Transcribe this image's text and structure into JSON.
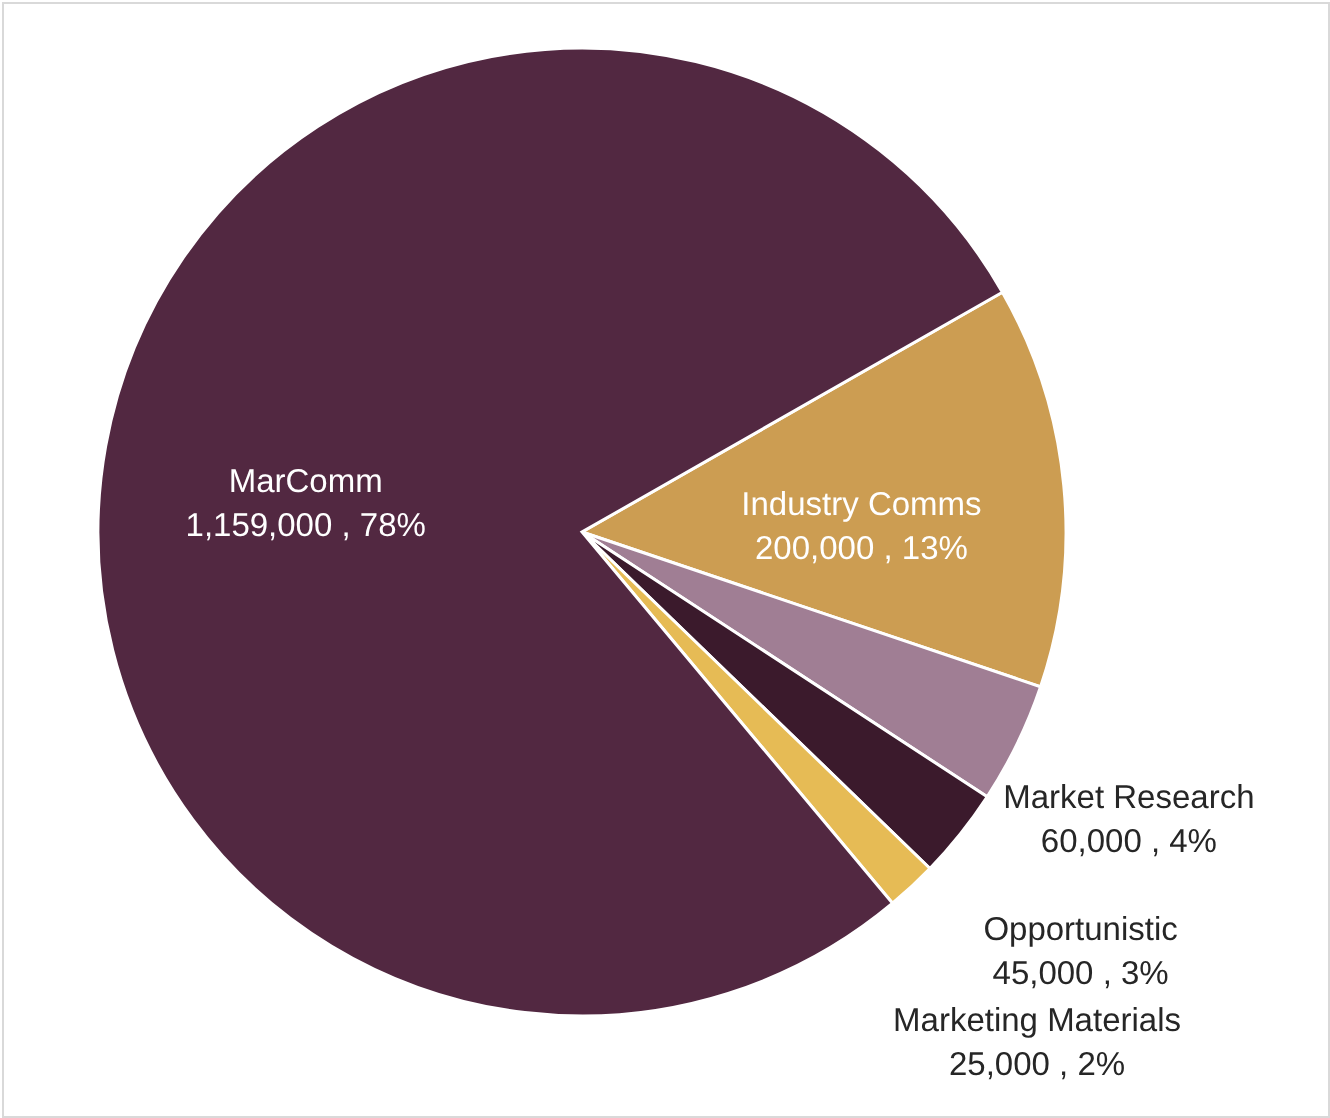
{
  "chart_data": {
    "type": "pie",
    "categories": [
      "Industry Comms",
      "Market Research",
      "Opportunistic",
      "Marketing Materials",
      "MarComm"
    ],
    "values": [
      200000,
      60000,
      45000,
      25000,
      1159000
    ],
    "colors": [
      "#cc9d52",
      "#a07e94",
      "#3b1a2c",
      "#e6bb55",
      "#522841"
    ],
    "value_labels": [
      "200,000 , 13%",
      "60,000 , 4%",
      "45,000 , 3%",
      "25,000 , 2%",
      "1,159,000 , 78%"
    ]
  }
}
